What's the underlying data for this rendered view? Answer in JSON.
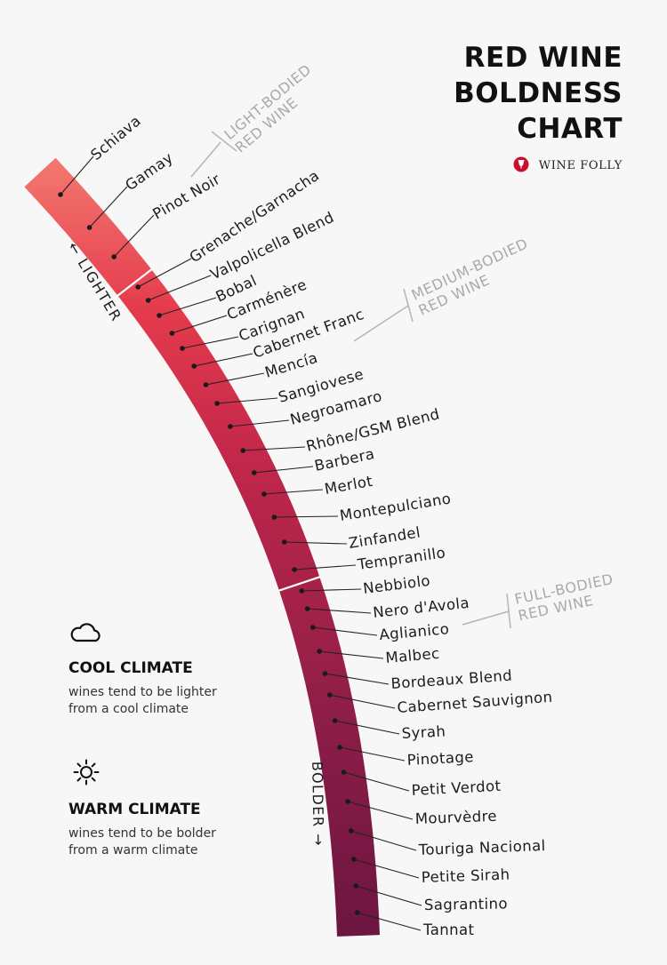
{
  "title": {
    "line1": "RED WINE",
    "line2": "BOLDNESS",
    "line3": "CHART"
  },
  "brand": {
    "name": "WINE FOLLY",
    "icon": "wine-folly-logo-icon"
  },
  "directions": {
    "lighter": "LIGHTER",
    "bolder": "BOLDER"
  },
  "categories": [
    {
      "line1": "LIGHT-BODIED",
      "line2": "RED WINE"
    },
    {
      "line1": "MEDIUM-BODIED",
      "line2": "RED WINE"
    },
    {
      "line1": "FULL-BODIED",
      "line2": "RED WINE"
    }
  ],
  "wines": [
    "Schiava",
    "Gamay",
    "Pinot Noir",
    "Grenache/Garnacha",
    "Valpolicella Blend",
    "Bobal",
    "Carménère",
    "Carignan",
    "Cabernet Franc",
    "Mencía",
    "Sangiovese",
    "Negroamaro",
    "Rhône/GSM Blend",
    "Barbera",
    "Merlot",
    "Montepulciano",
    "Zinfandel",
    "Tempranillo",
    "Nebbiolo",
    "Nero d'Avola",
    "Aglianico",
    "Malbec",
    "Bordeaux Blend",
    "Cabernet Sauvignon",
    "Syrah",
    "Pinotage",
    "Petit Verdot",
    "Mourvèdre",
    "Touriga Nacional",
    "Petite Sirah",
    "Sagrantino",
    "Tannat"
  ],
  "climate": {
    "cool": {
      "heading": "COOL CLIMATE",
      "line1": "wines tend to be lighter",
      "line2": "from a cool climate",
      "icon": "cloud-icon"
    },
    "warm": {
      "heading": "WARM CLIMATE",
      "line1": "wines tend to be bolder",
      "line2": "from a warm climate",
      "icon": "sun-icon"
    }
  },
  "colors": {
    "light": "#f47a70",
    "medium": "#d42a45",
    "mid_dark": "#a3234a",
    "dark": "#6b1540",
    "brand_red": "#c8102e"
  }
}
